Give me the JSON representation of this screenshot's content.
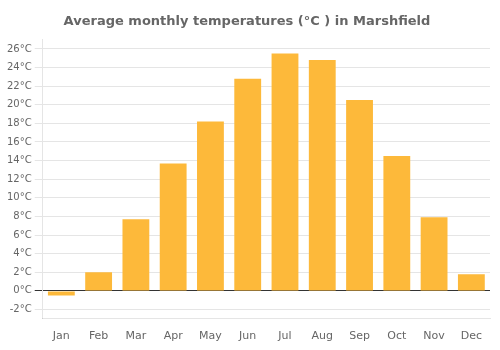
{
  "chart_data": {
    "type": "bar",
    "title": "Average monthly temperatures (°C ) in Marshfield",
    "categories": [
      "Jan",
      "Feb",
      "Mar",
      "Apr",
      "May",
      "Jun",
      "Jul",
      "Aug",
      "Sep",
      "Oct",
      "Nov",
      "Dec"
    ],
    "values": [
      -0.5,
      2.0,
      7.7,
      13.7,
      18.2,
      22.8,
      25.5,
      24.8,
      20.5,
      14.5,
      7.9,
      1.8
    ],
    "color": "#FDB93A",
    "ylim": [
      -3,
      27
    ],
    "yticks": [
      {
        "value": -2,
        "label": "-2°C"
      },
      {
        "value": 0,
        "label": "0°C"
      },
      {
        "value": 2,
        "label": "2°C"
      },
      {
        "value": 4,
        "label": "4°C"
      },
      {
        "value": 6,
        "label": "6°C"
      },
      {
        "value": 8,
        "label": "8°C"
      },
      {
        "value": 10,
        "label": "10°C"
      },
      {
        "value": 12,
        "label": "12°C"
      },
      {
        "value": 14,
        "label": "14°C"
      },
      {
        "value": 16,
        "label": "16°C"
      },
      {
        "value": 18,
        "label": "18°C"
      },
      {
        "value": 20,
        "label": "20°C"
      },
      {
        "value": 22,
        "label": "22°C"
      },
      {
        "value": 24,
        "label": "24°C"
      },
      {
        "value": 26,
        "label": "26°C"
      }
    ],
    "grid": true
  }
}
